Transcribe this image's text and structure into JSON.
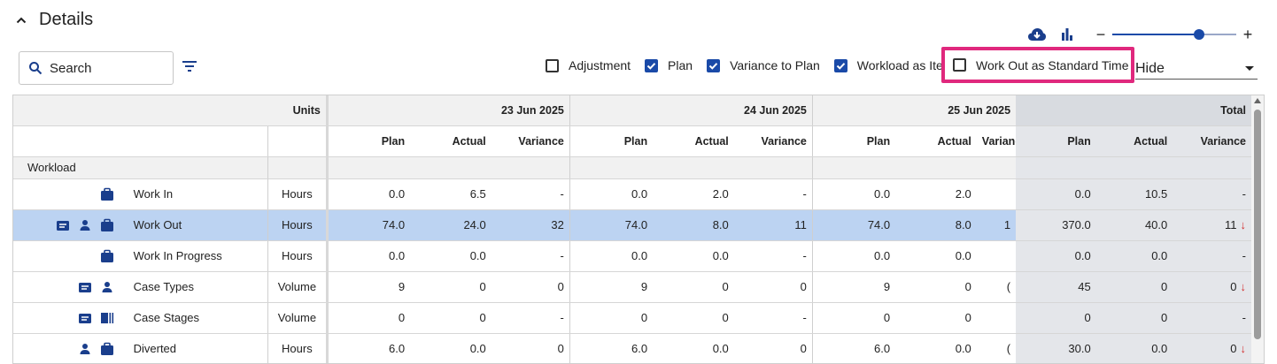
{
  "header": {
    "title": "Details"
  },
  "toolbar": {
    "zoom_level": 0.7
  },
  "search": {
    "placeholder": "Search"
  },
  "options": [
    {
      "label": "Adjustment",
      "checked": false
    },
    {
      "label": "Plan",
      "checked": true
    },
    {
      "label": "Variance to Plan",
      "checked": true
    },
    {
      "label": "Workload as Items",
      "checked": true
    },
    {
      "label": "Work Out as Standard Time",
      "checked": false
    }
  ],
  "hide_select": {
    "value": "Hide"
  },
  "table": {
    "units_header": "Units",
    "dates": [
      "23 Jun 2025",
      "24 Jun 2025",
      "25 Jun 2025"
    ],
    "total_header": "Total",
    "sub_headers": [
      "Plan",
      "Actual",
      "Variance"
    ],
    "group": "Workload",
    "rows": [
      {
        "icons": [
          "briefcase-icon"
        ],
        "metric": "Work In",
        "units": "Hours",
        "days": [
          [
            "0.0",
            "6.5",
            "-"
          ],
          [
            "0.0",
            "2.0",
            "-"
          ],
          [
            "0.0",
            "2.0",
            ""
          ]
        ],
        "total": [
          "0.0",
          "10.5",
          "-"
        ],
        "down": false,
        "selected": false
      },
      {
        "icons": [
          "notes-icon",
          "person-icon",
          "briefcase-icon"
        ],
        "metric": "Work Out",
        "units": "Hours",
        "days": [
          [
            "74.0",
            "24.0",
            "32"
          ],
          [
            "74.0",
            "8.0",
            "11"
          ],
          [
            "74.0",
            "8.0",
            "1"
          ]
        ],
        "total": [
          "370.0",
          "40.0",
          "11"
        ],
        "down": true,
        "selected": true
      },
      {
        "icons": [
          "briefcase-icon"
        ],
        "metric": "Work In Progress",
        "units": "Hours",
        "days": [
          [
            "0.0",
            "0.0",
            "-"
          ],
          [
            "0.0",
            "0.0",
            "-"
          ],
          [
            "0.0",
            "0.0",
            ""
          ]
        ],
        "total": [
          "0.0",
          "0.0",
          "-"
        ],
        "down": false,
        "selected": false
      },
      {
        "icons": [
          "notes-icon",
          "person-icon"
        ],
        "metric": "Case Types",
        "units": "Volume",
        "days": [
          [
            "9",
            "0",
            "0"
          ],
          [
            "9",
            "0",
            "0"
          ],
          [
            "9",
            "0",
            "("
          ]
        ],
        "total": [
          "45",
          "0",
          "0"
        ],
        "down": true,
        "selected": false
      },
      {
        "icons": [
          "notes-icon",
          "stages-icon"
        ],
        "metric": "Case Stages",
        "units": "Volume",
        "days": [
          [
            "0",
            "0",
            "-"
          ],
          [
            "0",
            "0",
            "-"
          ],
          [
            "0",
            "0",
            ""
          ]
        ],
        "total": [
          "0",
          "0",
          "-"
        ],
        "down": false,
        "selected": false
      },
      {
        "icons": [
          "person-icon",
          "briefcase-icon"
        ],
        "metric": "Diverted",
        "units": "Hours",
        "days": [
          [
            "6.0",
            "0.0",
            "0"
          ],
          [
            "6.0",
            "0.0",
            "0"
          ],
          [
            "6.0",
            "0.0",
            "("
          ]
        ],
        "total": [
          "30.0",
          "0.0",
          "0"
        ],
        "down": true,
        "selected": false
      }
    ]
  }
}
